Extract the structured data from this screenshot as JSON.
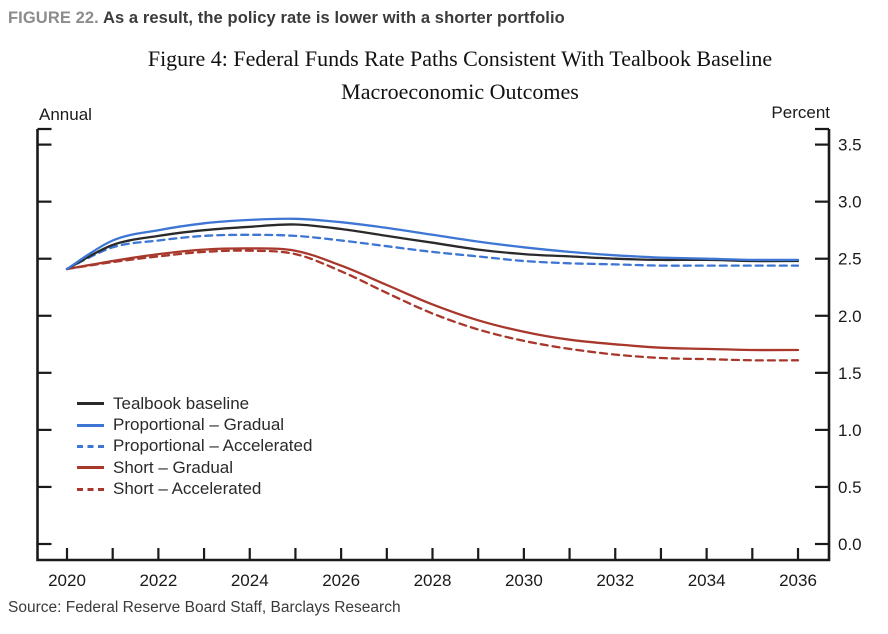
{
  "header": {
    "figure_label": "FIGURE 22.",
    "title": "As a result, the policy rate is lower with a shorter portfolio"
  },
  "chart": {
    "title_line1": "Figure 4: Federal Funds Rate Paths Consistent With Tealbook Baseline",
    "title_line2": "Macroeconomic Outcomes",
    "left_axis_label": "Annual",
    "right_axis_label": "Percent"
  },
  "source": "Source: Federal Reserve Board Staff, Barclays Research",
  "colors": {
    "axis": "#1a1a1a",
    "tick_text": "#1a1a1a",
    "baseline_black": "#2a2a2a",
    "proportional_blue": "#3d76d4",
    "short_red": "#a8372c"
  },
  "chart_data": {
    "type": "line",
    "x": [
      2020,
      2021,
      2022,
      2023,
      2024,
      2025,
      2026,
      2027,
      2028,
      2029,
      2030,
      2031,
      2032,
      2033,
      2034,
      2035,
      2036
    ],
    "series": [
      {
        "name": "Tealbook baseline",
        "color": "#2a2a2a",
        "dash": false,
        "values": [
          2.41,
          2.62,
          2.7,
          2.75,
          2.78,
          2.8,
          2.76,
          2.7,
          2.64,
          2.58,
          2.54,
          2.52,
          2.5,
          2.49,
          2.49,
          2.48,
          2.48
        ]
      },
      {
        "name": "Proportional – Gradual",
        "color": "#3d76d4",
        "dash": false,
        "values": [
          2.41,
          2.66,
          2.75,
          2.81,
          2.84,
          2.85,
          2.82,
          2.77,
          2.71,
          2.65,
          2.6,
          2.56,
          2.53,
          2.51,
          2.5,
          2.49,
          2.49
        ]
      },
      {
        "name": "Proportional – Accelerated",
        "color": "#3d76d4",
        "dash": true,
        "values": [
          2.41,
          2.6,
          2.66,
          2.7,
          2.71,
          2.7,
          2.66,
          2.61,
          2.56,
          2.52,
          2.48,
          2.46,
          2.45,
          2.44,
          2.44,
          2.44,
          2.44
        ]
      },
      {
        "name": "Short – Gradual",
        "color": "#a8372c",
        "dash": false,
        "values": [
          2.41,
          2.48,
          2.54,
          2.58,
          2.59,
          2.57,
          2.44,
          2.27,
          2.1,
          1.96,
          1.86,
          1.79,
          1.75,
          1.72,
          1.71,
          1.7,
          1.7
        ]
      },
      {
        "name": "Short – Accelerated",
        "color": "#a8372c",
        "dash": true,
        "values": [
          2.41,
          2.47,
          2.52,
          2.56,
          2.57,
          2.54,
          2.39,
          2.2,
          2.02,
          1.88,
          1.78,
          1.71,
          1.66,
          1.63,
          1.62,
          1.61,
          1.61
        ]
      }
    ],
    "title": "Figure 4: Federal Funds Rate Paths Consistent With Tealbook Baseline Macroeconomic Outcomes",
    "xlabel": "",
    "ylabel": "Percent",
    "ylim": [
      0.0,
      3.5
    ],
    "ytick_step": 0.5,
    "xtick_labels": [
      "2020",
      "2022",
      "2024",
      "2026",
      "2028",
      "2030",
      "2032",
      "2034",
      "2036"
    ],
    "grid": false,
    "legend_position": "inside-lower-left"
  }
}
